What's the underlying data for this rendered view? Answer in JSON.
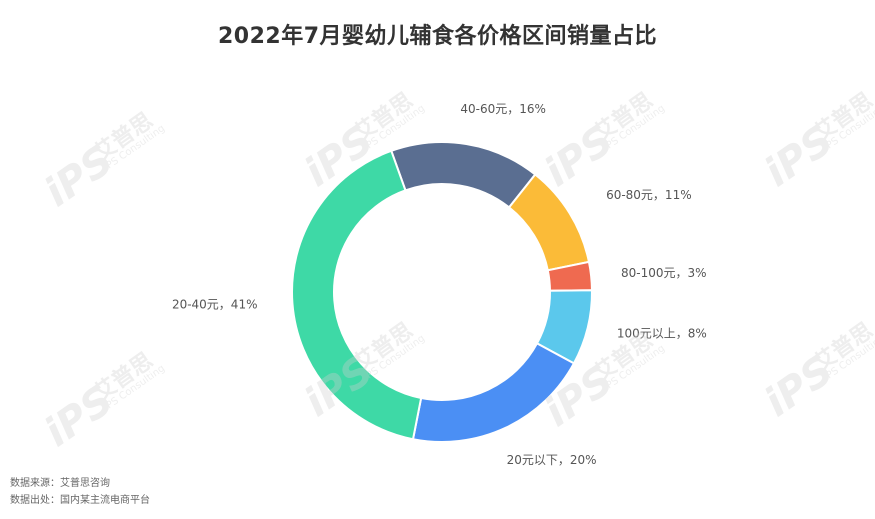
{
  "title": "2022年7月婴幼儿辅食各价格区间销量占比",
  "source_line1": "数据来源：艾普思咨询",
  "source_line2": "数据出处：国内某主流电商平台",
  "watermark": {
    "logo": "iPS",
    "cn": "艾普思",
    "en": "IPS Consulting"
  },
  "chart_data": {
    "type": "pie",
    "variant": "donut",
    "slices": [
      {
        "label": "40-60元，16%",
        "category": "40-60元",
        "value": 16,
        "color": "#5a6e91"
      },
      {
        "label": "60-80元，11%",
        "category": "60-80元",
        "value": 11,
        "color": "#fbbb38"
      },
      {
        "label": "80-100元，3%",
        "category": "80-100元",
        "value": 3,
        "color": "#ef6a50"
      },
      {
        "label": "100元以上，8%",
        "category": "100元以上",
        "value": 8,
        "color": "#5bc8ec"
      },
      {
        "label": "20元以下，20%",
        "category": "20元以下",
        "value": 20,
        "color": "#4b8ff4"
      },
      {
        "label": "20-40元，41%",
        "category": "20-40元",
        "value": 41,
        "color": "#3ed9a6"
      }
    ]
  }
}
